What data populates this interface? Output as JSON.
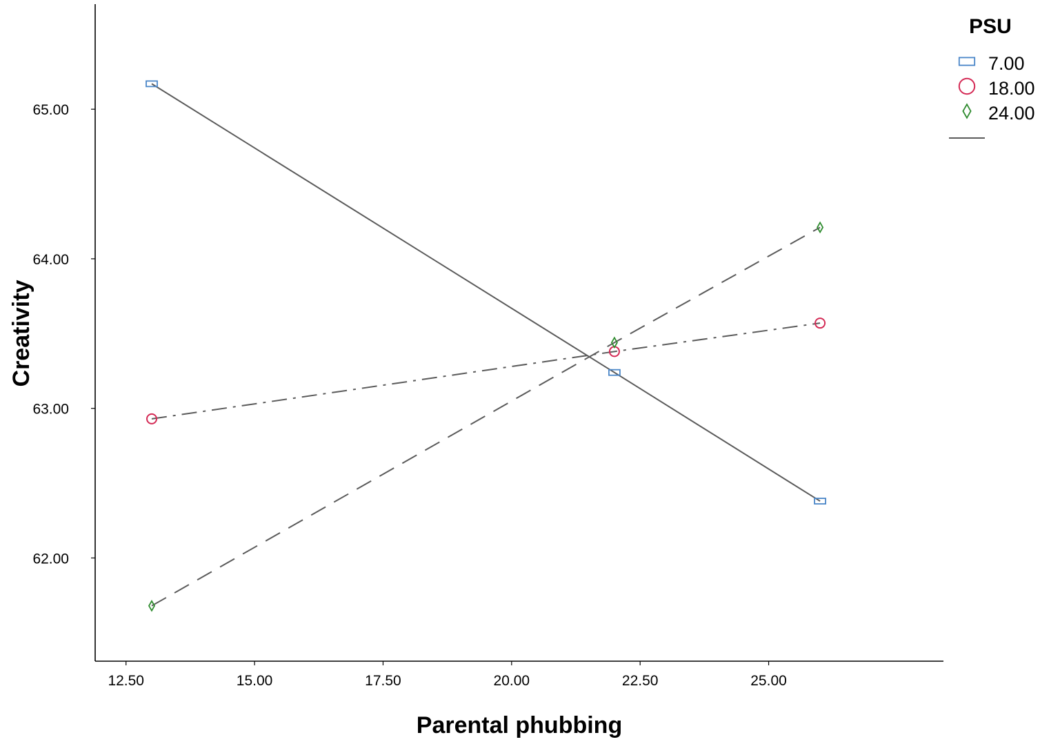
{
  "chart_data": {
    "type": "line",
    "xlabel": "Parental phubbing",
    "ylabel": "Creativity",
    "xlim": [
      11.9,
      28.4
    ],
    "ylim": [
      61.31,
      65.73
    ],
    "x_ticks": [
      12.5,
      15.0,
      17.5,
      20.0,
      22.5,
      25.0
    ],
    "x_tick_labels": [
      "12.50",
      "15.00",
      "17.50",
      "20.00",
      "22.50",
      "25.00"
    ],
    "y_ticks": [
      62.0,
      63.0,
      64.0,
      65.0
    ],
    "y_tick_labels": [
      "62.00",
      "63.00",
      "64.00",
      "65.00"
    ],
    "grid": false,
    "legend": {
      "title": "PSU",
      "position": "top-right"
    },
    "series": [
      {
        "name": "7.00",
        "marker": "square",
        "color": "#4a86c8",
        "line_style": "solid",
        "x": [
          13,
          22,
          26
        ],
        "y": [
          65.17,
          63.24,
          62.38
        ]
      },
      {
        "name": "18.00",
        "marker": "circle",
        "color": "#d42a55",
        "line_style": "dashdot",
        "x": [
          13,
          22,
          26
        ],
        "y": [
          62.93,
          63.38,
          63.57
        ]
      },
      {
        "name": "24.00",
        "marker": "diamond",
        "color": "#2e8b2e",
        "line_style": "dashed",
        "x": [
          13,
          22,
          26
        ],
        "y": [
          61.68,
          63.44,
          64.21
        ]
      }
    ],
    "line_color": "#5a5a5a"
  }
}
